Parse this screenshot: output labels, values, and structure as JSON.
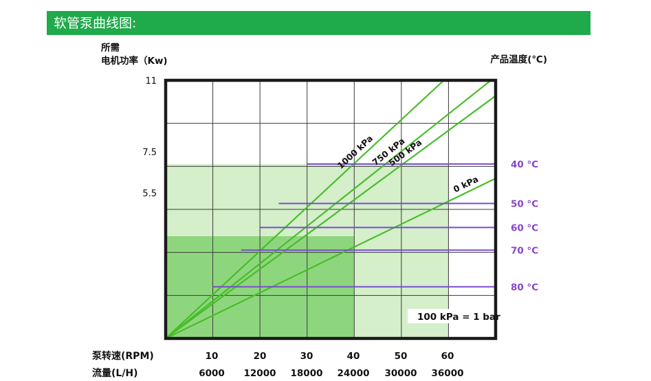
{
  "header": {
    "title": "软管泵曲线图:"
  },
  "chart_data": {
    "type": "line",
    "ylabel_lines": [
      "所需",
      "电机功率（Kw)"
    ],
    "right_label": "产品温度(℃)",
    "y_ticks": [
      "11",
      "7.5",
      "5.5"
    ],
    "x_rows": [
      {
        "label": "泵转速(RPM)",
        "ticks": [
          "10",
          "20",
          "30",
          "40",
          "50",
          "60"
        ]
      },
      {
        "label": "流量(L/H)",
        "ticks": [
          "6000",
          "12000",
          "18000",
          "24000",
          "30000",
          "36000"
        ]
      }
    ],
    "xlim_rpm": [
      0,
      70
    ],
    "series": [
      {
        "name": "1000 kPa",
        "points": [
          [
            0,
            0
          ],
          [
            59,
            100
          ]
        ]
      },
      {
        "name": "750 kPa",
        "points": [
          [
            0,
            0
          ],
          [
            69,
            100
          ]
        ]
      },
      {
        "name": "500 kPa",
        "points": [
          [
            0,
            0
          ],
          [
            70,
            94
          ]
        ]
      },
      {
        "name": "0 kPa",
        "points": [
          [
            0,
            0
          ],
          [
            70,
            62
          ]
        ]
      }
    ],
    "temperature_limits": [
      {
        "label": "40 °C",
        "from_rpm": 30,
        "level": 67.6
      },
      {
        "label": "50 °C",
        "from_rpm": 24,
        "level": 52.3
      },
      {
        "label": "60 °C",
        "from_rpm": 20,
        "level": 43.0
      },
      {
        "label": "70 °C",
        "from_rpm": 16,
        "level": 34.2
      },
      {
        "label": "80 °C",
        "from_rpm": 10,
        "level": 20.0
      }
    ],
    "zones": [
      {
        "to_rpm": 60,
        "to_level": 67.6,
        "color": "#d4efc9"
      },
      {
        "to_rpm": 40,
        "to_level": 39.6,
        "color": "#8ed67d"
      }
    ],
    "colors": {
      "pressure_line": "#48bd2b",
      "temp_line": "#7b4ad4",
      "temp_label": "#8a44c8",
      "frame": "#1a1a1a"
    },
    "note": "100 kPa = 1 bar"
  }
}
